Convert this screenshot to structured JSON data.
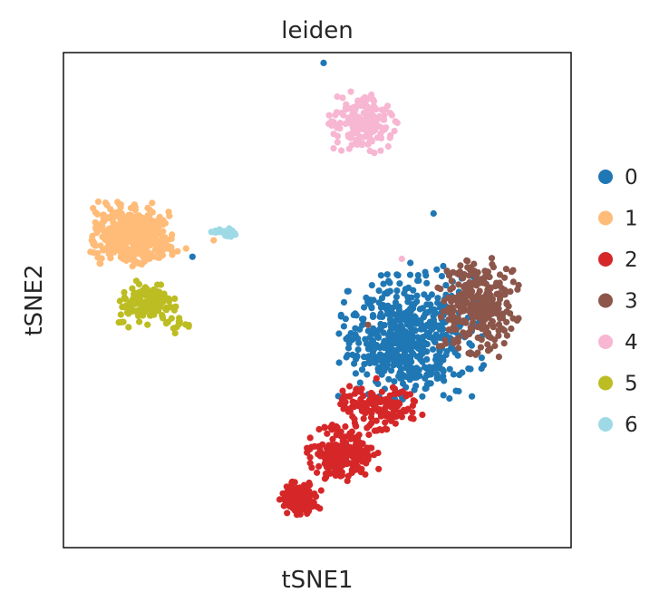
{
  "chart_data": {
    "type": "scatter",
    "title": "leiden",
    "xlabel": "tSNE1",
    "ylabel": "tSNE2",
    "xlim": [
      -60,
      60
    ],
    "ylim": [
      -60,
      60
    ],
    "ticks_visible": false,
    "grid": false,
    "legend_placement": "right-outside",
    "series": [
      {
        "name": "0",
        "color": "#1f77b4",
        "clusters": [
          {
            "center": [
              22,
              -9
            ],
            "spread": [
              13,
              11
            ],
            "n": 560
          },
          {
            "center": [
              30,
              3
            ],
            "spread": [
              6,
              6
            ],
            "n": 20
          }
        ],
        "outliers": [
          [
            27.5,
            21
          ],
          [
            1.5,
            57.5
          ],
          [
            -29.5,
            10.5
          ],
          [
            22,
            9
          ]
        ]
      },
      {
        "name": "1",
        "color": "#ffbb78",
        "clusters": [
          {
            "center": [
              -44,
              16
            ],
            "spread": [
              7,
              5.5
            ],
            "n": 420
          },
          {
            "center": [
              -37,
              13
            ],
            "spread": [
              4,
              2
            ],
            "n": 30
          }
        ],
        "outliers": [
          [
            -24.5,
            14.5
          ],
          [
            -31,
            12.5
          ]
        ]
      },
      {
        "name": "2",
        "color": "#d62728",
        "clusters": [
          {
            "center": [
              -4,
              -48
            ],
            "spread": [
              3.5,
              3
            ],
            "n": 150
          },
          {
            "center": [
              6,
              -37
            ],
            "spread": [
              6,
              5
            ],
            "n": 200
          },
          {
            "center": [
              15,
              -26
            ],
            "spread": [
              7,
              4
            ],
            "n": 150
          }
        ],
        "outliers": [
          [
            10.5,
            -21.5
          ],
          [
            14,
            -19
          ],
          [
            6,
            -22
          ]
        ]
      },
      {
        "name": "3",
        "color": "#8c564b",
        "clusters": [
          {
            "center": [
              38,
              -1
            ],
            "spread": [
              7,
              9
            ],
            "n": 290
          }
        ],
        "outliers": [
          [
            28.5,
            3
          ],
          [
            12,
            -6
          ],
          [
            35.5,
            9.5
          ]
        ]
      },
      {
        "name": "4",
        "color": "#f7b6d2",
        "clusters": [
          {
            "center": [
              11,
              43
            ],
            "spread": [
              6,
              5.5
            ],
            "n": 180
          }
        ],
        "outliers": [
          [
            20,
            10
          ]
        ]
      },
      {
        "name": "5",
        "color": "#bcbd22",
        "clusters": [
          {
            "center": [
              -40,
              -1
            ],
            "spread": [
              5,
              4
            ],
            "n": 150
          },
          {
            "center": [
              -32,
              -6
            ],
            "spread": [
              2,
              1.5
            ],
            "n": 10
          }
        ],
        "outliers": []
      },
      {
        "name": "6",
        "color": "#9edae5",
        "clusters": [
          {
            "center": [
              -22,
              16.5
            ],
            "spread": [
              3.5,
              1.2
            ],
            "n": 20
          }
        ],
        "outliers": []
      }
    ]
  }
}
